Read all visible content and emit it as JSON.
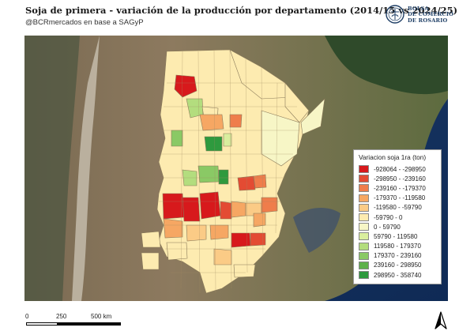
{
  "header": {
    "title": "Soja de primera - variación de la producción por departamento (2014/15 vs 2024/25)",
    "subtitle": "@BCRmercados en base a SAGyP"
  },
  "logo": {
    "line1": "BOLSA",
    "line2": "DE COMERCIO",
    "line3": "DE ROSARIO",
    "icon": "bcr-seal-icon",
    "color": "#1f3f66"
  },
  "legend": {
    "title": "Variacion soja 1ra (ton)",
    "items": [
      {
        "label": "-928064 - -298950",
        "color": "#d7191c"
      },
      {
        "label": "-298950 - -239160",
        "color": "#e34b33"
      },
      {
        "label": "-239160 - -179370",
        "color": "#ef7d4b"
      },
      {
        "label": "-179370 - -119580",
        "color": "#f6a763"
      },
      {
        "label": "-119580 - -59790",
        "color": "#fbcb86"
      },
      {
        "label": "-59790 - 0",
        "color": "#fdebb0"
      },
      {
        "label": "0 - 59790",
        "color": "#f7f6c6"
      },
      {
        "label": "59790 - 119580",
        "color": "#d9ee9e"
      },
      {
        "label": "119580 - 179370",
        "color": "#b3dd7e"
      },
      {
        "label": "179370 - 239160",
        "color": "#8ac965"
      },
      {
        "label": "239160 - 298950",
        "color": "#5eb14b"
      },
      {
        "label": "298950 - 358740",
        "color": "#2e9a3e"
      }
    ]
  },
  "scale_bar": {
    "ticks": [
      "0",
      "250",
      "500 km"
    ],
    "unit": "km"
  },
  "north_arrow": {
    "icon": "north-arrow-icon"
  }
}
